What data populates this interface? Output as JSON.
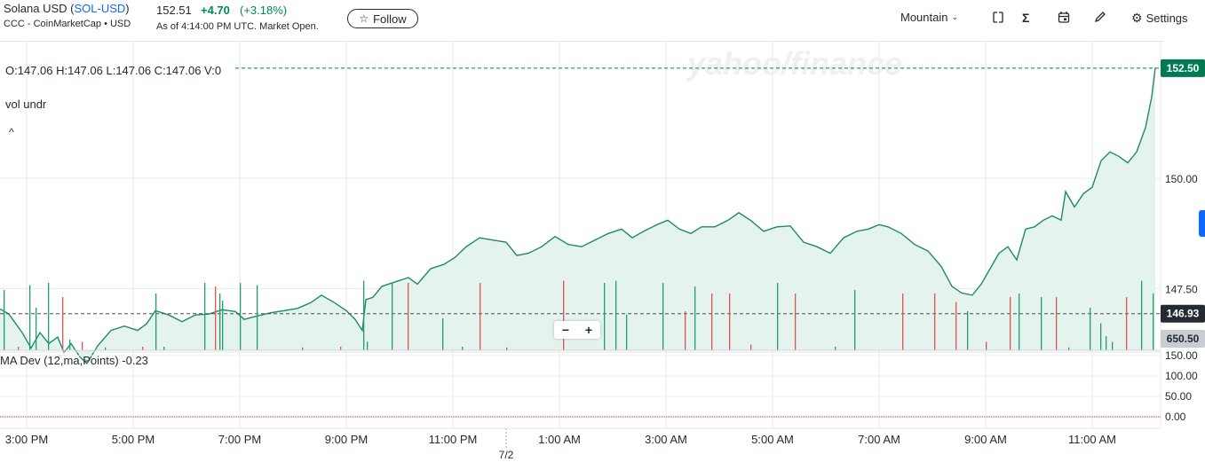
{
  "header": {
    "name_prefix": "Solana USD (",
    "ticker": "SOL-USD",
    "name_suffix": ")",
    "source": "CCC - CoinMarketCap • USD",
    "price": "152.51",
    "change": "+4.70",
    "change_pct": "(+3.18%)",
    "as_of": "As of 4:14:00 PM UTC. Market Open.",
    "follow_label": "Follow"
  },
  "toolbar": {
    "chart_type_label": "Mountain",
    "settings_label": "Settings",
    "icons": [
      "compare-icon",
      "sigma-icon",
      "calendar-icon",
      "pencil-icon",
      "gear-icon"
    ]
  },
  "overlay": {
    "ohlc": "O:147.06  H:147.06  L:147.06  C:147.06  V:0",
    "vol_label": "vol undr",
    "ma_dev_label": "MA Dev (12,ma,Points)  -0.23",
    "watermark": "yahoo/finance",
    "zoom_out": "−",
    "zoom_in": "+"
  },
  "colors": {
    "line": "#1d8a66",
    "fill": "#e5f3ee",
    "up": "#1f9e6e",
    "down": "#e0544b",
    "current_tag": "#007a53",
    "prev_close_tag": "#232a31",
    "volume_tag": "#c9ccd1"
  },
  "chart_data": {
    "type": "area",
    "title": "Solana USD (SOL-USD)",
    "ylim": [
      146.1,
      153.1
    ],
    "yticks": [
      147.5,
      150.0
    ],
    "ytick_labels": [
      "147.50",
      "150.00"
    ],
    "xtick_labels": [
      "3:00 PM",
      "5:00 PM",
      "7:00 PM",
      "9:00 PM",
      "11:00 PM",
      "1:00 AM",
      "3:00 AM",
      "5:00 AM",
      "7:00 AM",
      "9:00 AM",
      "11:00 AM"
    ],
    "date_marker": "7/2",
    "current_price_label": "152.50",
    "current_price": 152.5,
    "previous_close_label": "146.93",
    "previous_close": 146.93,
    "volume_label": "650.50",
    "price_series": [
      [
        0,
        147.04
      ],
      [
        10,
        146.92
      ],
      [
        25,
        146.5
      ],
      [
        35,
        146.15
      ],
      [
        45,
        146.5
      ],
      [
        55,
        146.25
      ],
      [
        65,
        146.4
      ],
      [
        72,
        146.05
      ],
      [
        80,
        146.25
      ],
      [
        90,
        145.95
      ],
      [
        98,
        145.8
      ],
      [
        110,
        146.2
      ],
      [
        125,
        146.55
      ],
      [
        140,
        146.65
      ],
      [
        155,
        146.55
      ],
      [
        165,
        146.7
      ],
      [
        175,
        147.0
      ],
      [
        190,
        146.9
      ],
      [
        205,
        146.75
      ],
      [
        220,
        146.9
      ],
      [
        235,
        146.92
      ],
      [
        250,
        147.02
      ],
      [
        265,
        146.98
      ],
      [
        275,
        146.8
      ],
      [
        290,
        146.88
      ],
      [
        305,
        146.95
      ],
      [
        320,
        147.0
      ],
      [
        335,
        147.05
      ],
      [
        350,
        147.18
      ],
      [
        362,
        147.35
      ],
      [
        375,
        147.2
      ],
      [
        390,
        147.0
      ],
      [
        400,
        146.8
      ],
      [
        408,
        146.55
      ],
      [
        412,
        147.25
      ],
      [
        420,
        147.3
      ],
      [
        430,
        147.55
      ],
      [
        445,
        147.65
      ],
      [
        460,
        147.75
      ],
      [
        470,
        147.6
      ],
      [
        485,
        147.95
      ],
      [
        500,
        148.05
      ],
      [
        512,
        148.2
      ],
      [
        525,
        148.45
      ],
      [
        540,
        148.65
      ],
      [
        555,
        148.6
      ],
      [
        570,
        148.55
      ],
      [
        582,
        148.25
      ],
      [
        595,
        148.3
      ],
      [
        610,
        148.45
      ],
      [
        625,
        148.68
      ],
      [
        640,
        148.5
      ],
      [
        655,
        148.45
      ],
      [
        670,
        148.6
      ],
      [
        685,
        148.75
      ],
      [
        700,
        148.85
      ],
      [
        712,
        148.65
      ],
      [
        725,
        148.8
      ],
      [
        740,
        148.95
      ],
      [
        752,
        149.05
      ],
      [
        765,
        148.85
      ],
      [
        778,
        148.75
      ],
      [
        790,
        148.9
      ],
      [
        805,
        148.9
      ],
      [
        820,
        149.05
      ],
      [
        832,
        149.22
      ],
      [
        845,
        149.05
      ],
      [
        860,
        148.8
      ],
      [
        875,
        148.9
      ],
      [
        890,
        148.92
      ],
      [
        905,
        148.55
      ],
      [
        920,
        148.45
      ],
      [
        935,
        148.3
      ],
      [
        950,
        148.65
      ],
      [
        965,
        148.8
      ],
      [
        978,
        148.85
      ],
      [
        990,
        148.95
      ],
      [
        1000,
        148.9
      ],
      [
        1015,
        148.75
      ],
      [
        1030,
        148.5
      ],
      [
        1045,
        148.35
      ],
      [
        1060,
        148.0
      ],
      [
        1072,
        147.55
      ],
      [
        1083,
        147.4
      ],
      [
        1095,
        147.35
      ],
      [
        1105,
        147.6
      ],
      [
        1115,
        147.95
      ],
      [
        1125,
        148.3
      ],
      [
        1135,
        148.45
      ],
      [
        1145,
        148.15
      ],
      [
        1155,
        148.85
      ],
      [
        1165,
        148.9
      ],
      [
        1175,
        149.05
      ],
      [
        1185,
        149.15
      ],
      [
        1195,
        149.05
      ],
      [
        1200,
        149.7
      ],
      [
        1210,
        149.35
      ],
      [
        1220,
        149.65
      ],
      [
        1230,
        149.8
      ],
      [
        1240,
        150.4
      ],
      [
        1250,
        150.6
      ],
      [
        1260,
        150.5
      ],
      [
        1270,
        150.35
      ],
      [
        1280,
        150.6
      ],
      [
        1290,
        151.15
      ],
      [
        1297,
        151.85
      ],
      [
        1301,
        152.51
      ]
    ],
    "ma_dev_ticks": [
      150,
      100,
      50,
      0
    ],
    "ma_dev_tick_labels": [
      "150.00",
      "100.00",
      "50.00",
      "0.00"
    ],
    "ma_dev_value": -0.23,
    "volume_bars": [
      [
        4,
        0.85,
        "up"
      ],
      [
        20,
        0.05,
        "down"
      ],
      [
        33,
        0.92,
        "up"
      ],
      [
        40,
        0.6,
        "up"
      ],
      [
        54,
        0.95,
        "up"
      ],
      [
        70,
        0.75,
        "down"
      ],
      [
        78,
        0.15,
        "up"
      ],
      [
        92,
        0.12,
        "down"
      ],
      [
        118,
        0.04,
        "up"
      ],
      [
        160,
        0.05,
        "down"
      ],
      [
        175,
        0.8,
        "up"
      ],
      [
        184,
        0.05,
        "up"
      ],
      [
        230,
        0.95,
        "up"
      ],
      [
        242,
        0.9,
        "down"
      ],
      [
        247,
        0.8,
        "up"
      ],
      [
        250,
        0.7,
        "up"
      ],
      [
        270,
        0.95,
        "up"
      ],
      [
        289,
        0.92,
        "up"
      ],
      [
        340,
        0.04,
        "up"
      ],
      [
        383,
        0.05,
        "down"
      ],
      [
        409,
        0.98,
        "up"
      ],
      [
        413,
        0.12,
        "up"
      ],
      [
        441,
        0.95,
        "up"
      ],
      [
        459,
        0.95,
        "down"
      ],
      [
        498,
        0.45,
        "up"
      ],
      [
        520,
        0.05,
        "up"
      ],
      [
        540,
        0.95,
        "down"
      ],
      [
        570,
        0.04,
        "up"
      ],
      [
        634,
        0.98,
        "down"
      ],
      [
        680,
        0.95,
        "up"
      ],
      [
        693,
        0.98,
        "up"
      ],
      [
        705,
        0.5,
        "up"
      ],
      [
        746,
        0.95,
        "up"
      ],
      [
        771,
        0.55,
        "down"
      ],
      [
        782,
        0.9,
        "up"
      ],
      [
        801,
        0.8,
        "down"
      ],
      [
        821,
        0.8,
        "down"
      ],
      [
        845,
        0.08,
        "down"
      ],
      [
        875,
        0.95,
        "up"
      ],
      [
        895,
        0.8,
        "down"
      ],
      [
        940,
        0.05,
        "up"
      ],
      [
        962,
        0.85,
        "up"
      ],
      [
        1016,
        0.8,
        "down"
      ],
      [
        1052,
        0.8,
        "down"
      ],
      [
        1076,
        0.68,
        "down"
      ],
      [
        1089,
        0.55,
        "up"
      ],
      [
        1110,
        0.12,
        "down"
      ],
      [
        1137,
        0.75,
        "down"
      ],
      [
        1147,
        0.8,
        "up"
      ],
      [
        1172,
        0.75,
        "up"
      ],
      [
        1189,
        0.75,
        "down"
      ],
      [
        1203,
        0.04,
        "up"
      ],
      [
        1227,
        0.6,
        "up"
      ],
      [
        1239,
        0.38,
        "up"
      ],
      [
        1245,
        0.2,
        "up"
      ],
      [
        1252,
        0.12,
        "up"
      ],
      [
        1268,
        0.75,
        "down"
      ],
      [
        1285,
        0.98,
        "up"
      ],
      [
        1298,
        0.8,
        "up"
      ]
    ]
  }
}
